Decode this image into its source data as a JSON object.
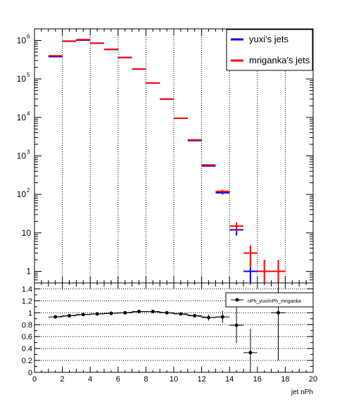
{
  "chart_data": [
    {
      "type": "histogram",
      "xlabel": "",
      "ylabel": "",
      "xlim": [
        0,
        20
      ],
      "ylim": [
        0.5,
        2000000
      ],
      "y_scale": "log",
      "grid": "vertical dotted",
      "legend_placement": "top-right",
      "y_tick_labels": [
        "1",
        "10",
        "10",
        "10",
        "10",
        "10",
        "10"
      ],
      "y_tick_exponents": [
        "",
        "",
        "2",
        "3",
        "4",
        "5",
        "6"
      ],
      "bin_width": 1,
      "x": [
        1.5,
        2.5,
        3.5,
        4.5,
        5.5,
        6.5,
        7.5,
        8.5,
        9.5,
        10.5,
        11.5,
        12.5,
        13.5,
        14.5,
        15.5,
        16.5,
        17.5
      ],
      "series": [
        {
          "name": "yuxi's jets",
          "color": "#0000ff",
          "values": [
            380000,
            950000,
            1020000,
            850000,
            580000,
            360000,
            180000,
            78000,
            30000,
            9500,
            2500,
            550,
            110,
            12,
            1,
            null,
            null
          ]
        },
        {
          "name": "mriganka's jets",
          "color": "#ff0000",
          "values": [
            400000,
            960000,
            1050000,
            850000,
            590000,
            360000,
            180000,
            78000,
            30000,
            9500,
            2600,
            580,
            120,
            15,
            3,
            1,
            1
          ]
        }
      ]
    },
    {
      "type": "scatter",
      "xlabel": "jet nPh",
      "ylabel": "",
      "xlim": [
        0,
        20
      ],
      "ylim": [
        0,
        1.5
      ],
      "grid": "horizontal dotted",
      "legend_placement": "top-right",
      "x_ticks": [
        "0",
        "2",
        "4",
        "6",
        "8",
        "10",
        "12",
        "14",
        "16",
        "18",
        "20"
      ],
      "y_ticks": [
        "0",
        "0.2",
        "0.4",
        "0.6",
        "0.8",
        "1",
        "1.2",
        "1.4"
      ],
      "series": [
        {
          "name": "nPh_yuxi/nPh_mriganka",
          "color": "#000000",
          "x": [
            1.5,
            2.5,
            3.5,
            4.5,
            5.5,
            6.5,
            7.5,
            8.5,
            9.5,
            10.5,
            11.5,
            12.5,
            13.5,
            14.5,
            15.5,
            17.5
          ],
          "values": [
            0.93,
            0.95,
            0.97,
            0.98,
            0.99,
            1.0,
            1.02,
            1.02,
            1.0,
            0.98,
            0.95,
            0.92,
            0.93,
            0.79,
            0.33,
            1.0
          ],
          "errors": [
            0.005,
            0.005,
            0.005,
            0.005,
            0.005,
            0.005,
            0.005,
            0.006,
            0.008,
            0.015,
            0.03,
            0.05,
            0.1,
            0.3,
            0.4,
            0.8
          ]
        }
      ]
    }
  ]
}
